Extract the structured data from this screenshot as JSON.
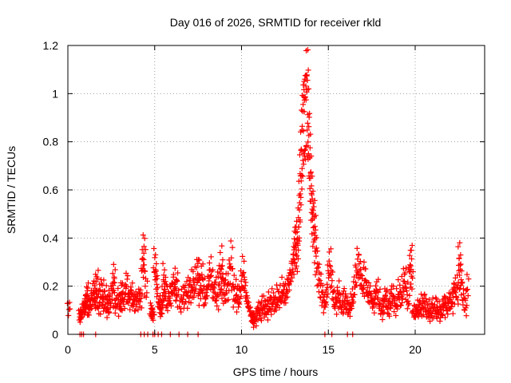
{
  "chart_data": {
    "type": "scatter",
    "title": "Day 016 of 2026, SRMTID for receiver rkld",
    "xlabel": "GPS time / hours",
    "ylabel": "SRMTID / TECUs",
    "xlim": [
      0,
      24
    ],
    "ylim": [
      0,
      1.2
    ],
    "grid": true,
    "marker": "+",
    "color": "#ff0000",
    "xticks": [
      0,
      5,
      10,
      15,
      20
    ],
    "xtick_labels": [
      "0",
      "5",
      "10",
      "15",
      "20"
    ],
    "yticks": [
      0,
      0.2,
      0.4,
      0.6,
      0.8,
      1,
      1.2
    ],
    "ytick_labels": [
      "0",
      "0.2",
      "0.4",
      "0.6",
      "0.8",
      "1",
      "1.2"
    ],
    "series": [
      {
        "name": "rkld",
        "points": [
          [
            0.05,
            0.11
          ],
          [
            0.7,
            0.08
          ],
          [
            0.75,
            0.07
          ],
          [
            0.8,
            0.09
          ],
          [
            0.9,
            0.12
          ],
          [
            1.0,
            0.1
          ],
          [
            1.05,
            0.15
          ],
          [
            1.1,
            0.18
          ],
          [
            1.15,
            0.13
          ],
          [
            1.2,
            0.09
          ],
          [
            1.3,
            0.14
          ],
          [
            1.35,
            0.12
          ],
          [
            1.4,
            0.17
          ],
          [
            1.5,
            0.16
          ],
          [
            1.55,
            0.2
          ],
          [
            1.6,
            0.13
          ],
          [
            1.7,
            0.22
          ],
          [
            1.75,
            0.15
          ],
          [
            1.8,
            0.11
          ],
          [
            1.9,
            0.19
          ],
          [
            2.0,
            0.14
          ],
          [
            2.05,
            0.18
          ],
          [
            2.1,
            0.12
          ],
          [
            2.2,
            0.16
          ],
          [
            2.3,
            0.1
          ],
          [
            2.35,
            0.15
          ],
          [
            2.4,
            0.13
          ],
          [
            2.5,
            0.17
          ],
          [
            2.6,
            0.21
          ],
          [
            2.65,
            0.24
          ],
          [
            2.7,
            0.14
          ],
          [
            2.8,
            0.12
          ],
          [
            2.9,
            0.16
          ],
          [
            3.0,
            0.11
          ],
          [
            3.05,
            0.15
          ],
          [
            3.1,
            0.19
          ],
          [
            3.2,
            0.13
          ],
          [
            3.3,
            0.17
          ],
          [
            3.4,
            0.22
          ],
          [
            3.5,
            0.14
          ],
          [
            3.6,
            0.16
          ],
          [
            3.7,
            0.18
          ],
          [
            3.8,
            0.12
          ],
          [
            3.9,
            0.15
          ],
          [
            4.0,
            0.14
          ],
          [
            4.1,
            0.16
          ],
          [
            4.2,
            0.15
          ],
          [
            4.3,
            0.29
          ],
          [
            4.35,
            0.34
          ],
          [
            4.4,
            0.3
          ],
          [
            4.5,
            0.19
          ],
          [
            4.8,
            0.1
          ],
          [
            4.85,
            0.09
          ],
          [
            4.9,
            0.08
          ],
          [
            5.0,
            0.29
          ],
          [
            5.05,
            0.26
          ],
          [
            5.1,
            0.22
          ],
          [
            5.2,
            0.14
          ],
          [
            5.3,
            0.11
          ],
          [
            5.35,
            0.09
          ],
          [
            5.4,
            0.13
          ],
          [
            5.5,
            0.16
          ],
          [
            5.55,
            0.24
          ],
          [
            5.6,
            0.2
          ],
          [
            5.7,
            0.12
          ],
          [
            5.8,
            0.17
          ],
          [
            5.9,
            0.14
          ],
          [
            6.0,
            0.19
          ],
          [
            6.1,
            0.22
          ],
          [
            6.2,
            0.18
          ],
          [
            6.25,
            0.21
          ],
          [
            6.3,
            0.15
          ],
          [
            6.5,
            0.12
          ],
          [
            6.6,
            0.16
          ],
          [
            6.7,
            0.14
          ],
          [
            6.8,
            0.18
          ],
          [
            6.9,
            0.15
          ],
          [
            7.0,
            0.2
          ],
          [
            7.1,
            0.17
          ],
          [
            7.2,
            0.22
          ],
          [
            7.3,
            0.19
          ],
          [
            7.4,
            0.24
          ],
          [
            7.5,
            0.28
          ],
          [
            7.55,
            0.21
          ],
          [
            7.6,
            0.16
          ],
          [
            7.7,
            0.25
          ],
          [
            7.8,
            0.2
          ],
          [
            7.9,
            0.14
          ],
          [
            8.0,
            0.18
          ],
          [
            8.1,
            0.23
          ],
          [
            8.2,
            0.27
          ],
          [
            8.3,
            0.22
          ],
          [
            8.4,
            0.17
          ],
          [
            8.5,
            0.2
          ],
          [
            8.6,
            0.14
          ],
          [
            8.7,
            0.24
          ],
          [
            8.8,
            0.19
          ],
          [
            8.85,
            0.3
          ],
          [
            8.9,
            0.25
          ],
          [
            9.0,
            0.16
          ],
          [
            9.1,
            0.21
          ],
          [
            9.2,
            0.18
          ],
          [
            9.3,
            0.26
          ],
          [
            9.4,
            0.32
          ],
          [
            9.5,
            0.22
          ],
          [
            9.6,
            0.15
          ],
          [
            9.7,
            0.19
          ],
          [
            9.8,
            0.13
          ],
          [
            9.9,
            0.17
          ],
          [
            10.0,
            0.22
          ],
          [
            10.1,
            0.27
          ],
          [
            10.2,
            0.2
          ],
          [
            10.3,
            0.15
          ],
          [
            10.4,
            0.12
          ],
          [
            10.5,
            0.1
          ],
          [
            10.6,
            0.07
          ],
          [
            10.65,
            0.05
          ],
          [
            10.7,
            0.08
          ],
          [
            10.8,
            0.06
          ],
          [
            10.9,
            0.09
          ],
          [
            11.0,
            0.11
          ],
          [
            11.1,
            0.08
          ],
          [
            11.2,
            0.13
          ],
          [
            11.3,
            0.1
          ],
          [
            11.4,
            0.12
          ],
          [
            11.5,
            0.09
          ],
          [
            11.6,
            0.14
          ],
          [
            11.7,
            0.11
          ],
          [
            11.8,
            0.15
          ],
          [
            11.9,
            0.12
          ],
          [
            12.0,
            0.13
          ],
          [
            12.1,
            0.17
          ],
          [
            12.2,
            0.14
          ],
          [
            12.3,
            0.16
          ],
          [
            12.4,
            0.19
          ],
          [
            12.5,
            0.15
          ],
          [
            12.6,
            0.18
          ],
          [
            12.7,
            0.21
          ],
          [
            12.8,
            0.24
          ],
          [
            12.9,
            0.27
          ],
          [
            13.0,
            0.3
          ],
          [
            13.05,
            0.36
          ],
          [
            13.1,
            0.41
          ],
          [
            13.15,
            0.35
          ],
          [
            13.2,
            0.32
          ],
          [
            13.25,
            0.38
          ],
          [
            13.3,
            0.46
          ],
          [
            13.35,
            0.55
          ],
          [
            13.4,
            0.64
          ],
          [
            13.45,
            0.72
          ],
          [
            13.5,
            0.8
          ],
          [
            13.55,
            0.86
          ],
          [
            13.6,
            0.91
          ],
          [
            13.65,
            0.94
          ],
          [
            13.7,
            0.9
          ],
          [
            13.75,
            0.97
          ],
          [
            13.8,
            1.04
          ],
          [
            13.85,
            0.88
          ],
          [
            13.9,
            0.78
          ],
          [
            13.95,
            0.7
          ],
          [
            14.0,
            0.62
          ],
          [
            14.05,
            0.55
          ],
          [
            14.1,
            0.5
          ],
          [
            14.15,
            0.45
          ],
          [
            14.2,
            0.48
          ],
          [
            14.25,
            0.38
          ],
          [
            14.3,
            0.32
          ],
          [
            14.4,
            0.26
          ],
          [
            14.5,
            0.22
          ],
          [
            14.6,
            0.18
          ],
          [
            14.7,
            0.15
          ],
          [
            14.8,
            0.12
          ],
          [
            14.9,
            0.17
          ],
          [
            15.0,
            0.26
          ],
          [
            15.1,
            0.3
          ],
          [
            15.2,
            0.22
          ],
          [
            15.3,
            0.16
          ],
          [
            15.4,
            0.12
          ],
          [
            15.5,
            0.15
          ],
          [
            15.6,
            0.18
          ],
          [
            15.7,
            0.13
          ],
          [
            15.8,
            0.11
          ],
          [
            15.9,
            0.16
          ],
          [
            16.0,
            0.14
          ],
          [
            16.1,
            0.12
          ],
          [
            16.2,
            0.1
          ],
          [
            16.3,
            0.13
          ],
          [
            16.4,
            0.15
          ],
          [
            16.5,
            0.2
          ],
          [
            16.6,
            0.25
          ],
          [
            16.7,
            0.3
          ],
          [
            16.8,
            0.27
          ],
          [
            16.9,
            0.22
          ],
          [
            17.0,
            0.19
          ],
          [
            17.1,
            0.26
          ],
          [
            17.2,
            0.2
          ],
          [
            17.3,
            0.15
          ],
          [
            17.4,
            0.18
          ],
          [
            17.5,
            0.14
          ],
          [
            17.6,
            0.12
          ],
          [
            17.7,
            0.16
          ],
          [
            17.8,
            0.19
          ],
          [
            17.9,
            0.15
          ],
          [
            18.0,
            0.11
          ],
          [
            18.1,
            0.09
          ],
          [
            18.2,
            0.13
          ],
          [
            18.3,
            0.16
          ],
          [
            18.4,
            0.12
          ],
          [
            18.5,
            0.1
          ],
          [
            18.6,
            0.14
          ],
          [
            18.7,
            0.17
          ],
          [
            18.8,
            0.13
          ],
          [
            18.9,
            0.11
          ],
          [
            19.0,
            0.15
          ],
          [
            19.1,
            0.18
          ],
          [
            19.2,
            0.14
          ],
          [
            19.3,
            0.2
          ],
          [
            19.4,
            0.24
          ],
          [
            19.5,
            0.18
          ],
          [
            19.6,
            0.13
          ],
          [
            19.7,
            0.29
          ],
          [
            19.75,
            0.31
          ],
          [
            19.8,
            0.22
          ],
          [
            19.9,
            0.1
          ],
          [
            20.0,
            0.08
          ],
          [
            20.1,
            0.11
          ],
          [
            20.2,
            0.09
          ],
          [
            20.3,
            0.13
          ],
          [
            20.4,
            0.1
          ],
          [
            20.5,
            0.14
          ],
          [
            20.6,
            0.12
          ],
          [
            20.7,
            0.09
          ],
          [
            20.8,
            0.11
          ],
          [
            20.9,
            0.08
          ],
          [
            21.0,
            0.12
          ],
          [
            21.1,
            0.1
          ],
          [
            21.2,
            0.13
          ],
          [
            21.3,
            0.09
          ],
          [
            21.4,
            0.11
          ],
          [
            21.5,
            0.08
          ],
          [
            21.6,
            0.12
          ],
          [
            21.7,
            0.14
          ],
          [
            21.8,
            0.1
          ],
          [
            21.9,
            0.13
          ],
          [
            22.0,
            0.15
          ],
          [
            22.1,
            0.12
          ],
          [
            22.2,
            0.17
          ],
          [
            22.3,
            0.2
          ],
          [
            22.4,
            0.16
          ],
          [
            22.5,
            0.22
          ],
          [
            22.55,
            0.32
          ],
          [
            22.6,
            0.28
          ],
          [
            22.7,
            0.19
          ],
          [
            22.8,
            0.14
          ],
          [
            22.9,
            0.11
          ],
          [
            23.0,
            0.2
          ]
        ],
        "zero_points": [
          0.7,
          0.8,
          0.9,
          1.6,
          4.2,
          4.4,
          4.6,
          4.9,
          5.0,
          5.2,
          5.4,
          5.9,
          6.4,
          6.9,
          7.5,
          14.8,
          15.2,
          16.1,
          16.4
        ]
      }
    ]
  }
}
